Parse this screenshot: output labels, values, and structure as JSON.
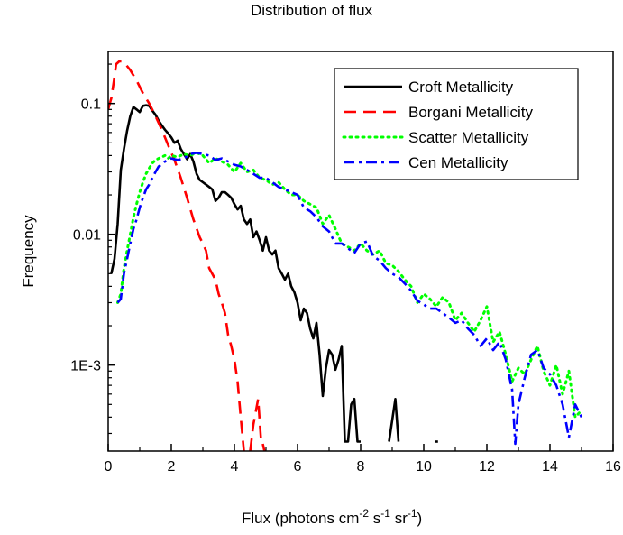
{
  "chart_data": {
    "type": "line",
    "title": "Distribution of flux",
    "xlabel": {
      "prefix": "Flux (photons cm",
      "exp1": "-2",
      "mid1": " s",
      "exp2": "-1",
      "mid2": " sr",
      "exp3": "-1",
      "suffix": ")"
    },
    "ylabel": "Frequency",
    "xlim": [
      0,
      16
    ],
    "ylim": [
      0.00022,
      0.25
    ],
    "yscale": "log",
    "x_ticks": [
      0,
      2,
      4,
      6,
      8,
      10,
      12,
      14,
      16
    ],
    "x_tick_labels": [
      "0",
      "2",
      "4",
      "6",
      "8",
      "10",
      "12",
      "14",
      "16"
    ],
    "y_ticks": [
      0.001,
      0.01,
      0.1
    ],
    "y_tick_labels": [
      "1E-3",
      "0.01",
      "0.1"
    ],
    "legend_position": "top-right",
    "series": [
      {
        "name": "Croft Metallicity",
        "color": "#000000",
        "style": "solid",
        "points": [
          [
            0.1,
            0.005
          ],
          [
            0.2,
            0.0065
          ],
          [
            0.3,
            0.012
          ],
          [
            0.4,
            0.031
          ],
          [
            0.5,
            0.045
          ],
          [
            0.6,
            0.062
          ],
          [
            0.7,
            0.08
          ],
          [
            0.8,
            0.094
          ],
          [
            0.9,
            0.09
          ],
          [
            1.0,
            0.086
          ],
          [
            1.1,
            0.096
          ],
          [
            1.2,
            0.097
          ],
          [
            1.3,
            0.096
          ],
          [
            1.4,
            0.088
          ],
          [
            1.5,
            0.082
          ],
          [
            1.6,
            0.074
          ],
          [
            1.7,
            0.068
          ],
          [
            1.8,
            0.063
          ],
          [
            1.9,
            0.059
          ],
          [
            2.0,
            0.055
          ],
          [
            2.1,
            0.05
          ],
          [
            2.2,
            0.052
          ],
          [
            2.3,
            0.045
          ],
          [
            2.4,
            0.041
          ],
          [
            2.5,
            0.0375
          ],
          [
            2.6,
            0.041
          ],
          [
            2.7,
            0.036
          ],
          [
            2.8,
            0.029
          ],
          [
            2.9,
            0.026
          ],
          [
            3.0,
            0.025
          ],
          [
            3.1,
            0.024
          ],
          [
            3.2,
            0.023
          ],
          [
            3.3,
            0.022
          ],
          [
            3.4,
            0.018
          ],
          [
            3.5,
            0.019
          ],
          [
            3.6,
            0.021
          ],
          [
            3.7,
            0.021
          ],
          [
            3.8,
            0.02
          ],
          [
            3.9,
            0.019
          ],
          [
            4.0,
            0.017
          ],
          [
            4.1,
            0.0155
          ],
          [
            4.2,
            0.0165
          ],
          [
            4.3,
            0.013
          ],
          [
            4.4,
            0.012
          ],
          [
            4.5,
            0.013
          ],
          [
            4.6,
            0.0095
          ],
          [
            4.7,
            0.0105
          ],
          [
            4.8,
            0.009
          ],
          [
            4.9,
            0.0075
          ],
          [
            5.0,
            0.0095
          ],
          [
            5.1,
            0.0075
          ],
          [
            5.2,
            0.007
          ],
          [
            5.3,
            0.0075
          ],
          [
            5.4,
            0.0055
          ],
          [
            5.5,
            0.005
          ],
          [
            5.6,
            0.0045
          ],
          [
            5.7,
            0.005
          ],
          [
            5.8,
            0.004
          ],
          [
            5.9,
            0.0036
          ],
          [
            6.0,
            0.003
          ],
          [
            6.1,
            0.0022
          ],
          [
            6.2,
            0.0027
          ],
          [
            6.3,
            0.0025
          ],
          [
            6.4,
            0.0019
          ],
          [
            6.5,
            0.0016
          ],
          [
            6.6,
            0.0021
          ],
          [
            6.7,
            0.0012
          ],
          [
            6.8,
            0.00058
          ],
          [
            6.9,
            0.00095
          ],
          [
            7.0,
            0.0013
          ],
          [
            7.1,
            0.0012
          ],
          [
            7.2,
            0.00092
          ],
          [
            7.3,
            0.0011
          ],
          [
            7.4,
            0.0014
          ],
          [
            7.5,
            0.00026
          ],
          [
            7.6,
            0.00026
          ],
          [
            7.7,
            0.0005
          ],
          [
            7.8,
            0.00055
          ],
          [
            7.9,
            0.00026
          ],
          [
            8.0,
            0.00026
          ]
        ],
        "extra_segments": [
          [
            [
              8.9,
              0.00026
            ],
            [
              9.1,
              0.00055
            ],
            [
              9.2,
              0.00026
            ]
          ],
          [
            [
              10.35,
              0.00026
            ],
            [
              10.45,
              0.00026
            ]
          ]
        ]
      },
      {
        "name": "Borgani Metallicity",
        "color": "#ff0000",
        "style": "dashed",
        "points": [
          [
            0.0,
            0.09
          ],
          [
            0.1,
            0.11
          ],
          [
            0.2,
            0.16
          ],
          [
            0.25,
            0.2
          ],
          [
            0.35,
            0.21
          ],
          [
            0.45,
            0.21
          ],
          [
            0.55,
            0.2
          ],
          [
            0.7,
            0.18
          ],
          [
            0.9,
            0.15
          ],
          [
            1.1,
            0.12
          ],
          [
            1.3,
            0.1
          ],
          [
            1.5,
            0.08
          ],
          [
            1.7,
            0.063
          ],
          [
            1.9,
            0.048
          ],
          [
            2.1,
            0.037
          ],
          [
            2.3,
            0.027
          ],
          [
            2.5,
            0.019
          ],
          [
            2.7,
            0.013
          ],
          [
            2.9,
            0.0095
          ],
          [
            3.0,
            0.0085
          ],
          [
            3.1,
            0.0075
          ],
          [
            3.2,
            0.0055
          ],
          [
            3.4,
            0.0045
          ],
          [
            3.5,
            0.0035
          ],
          [
            3.6,
            0.003
          ],
          [
            3.7,
            0.0025
          ],
          [
            3.8,
            0.0017
          ],
          [
            3.9,
            0.0014
          ],
          [
            4.0,
            0.0011
          ],
          [
            4.1,
            0.00075
          ],
          [
            4.2,
            0.0004
          ],
          [
            4.3,
            0.00022
          ]
        ],
        "extra_segments": [
          [
            [
              4.5,
              0.00022
            ],
            [
              4.6,
              0.00035
            ],
            [
              4.75,
              0.00055
            ],
            [
              4.85,
              0.00025
            ]
          ],
          [
            [
              4.9,
              0.00025
            ],
            [
              4.95,
              0.00022
            ]
          ]
        ]
      },
      {
        "name": "Scatter Metallicity",
        "color": "#00ff00",
        "style": "dotted",
        "points": [
          [
            0.3,
            0.003
          ],
          [
            0.4,
            0.0035
          ],
          [
            0.5,
            0.0055
          ],
          [
            0.6,
            0.0075
          ],
          [
            0.7,
            0.01
          ],
          [
            0.8,
            0.0135
          ],
          [
            0.9,
            0.017
          ],
          [
            1.0,
            0.021
          ],
          [
            1.1,
            0.025
          ],
          [
            1.2,
            0.029
          ],
          [
            1.3,
            0.032
          ],
          [
            1.4,
            0.035
          ],
          [
            1.5,
            0.037
          ],
          [
            1.6,
            0.038
          ],
          [
            1.7,
            0.039
          ],
          [
            1.8,
            0.04
          ],
          [
            1.9,
            0.038
          ],
          [
            2.0,
            0.04
          ],
          [
            2.2,
            0.039
          ],
          [
            2.4,
            0.041
          ],
          [
            2.6,
            0.04
          ],
          [
            2.8,
            0.042
          ],
          [
            3.0,
            0.04
          ],
          [
            3.2,
            0.035
          ],
          [
            3.4,
            0.038
          ],
          [
            3.6,
            0.036
          ],
          [
            3.8,
            0.034
          ],
          [
            4.0,
            0.03
          ],
          [
            4.2,
            0.035
          ],
          [
            4.4,
            0.03
          ],
          [
            4.6,
            0.031
          ],
          [
            4.8,
            0.027
          ],
          [
            5.0,
            0.026
          ],
          [
            5.2,
            0.024
          ],
          [
            5.4,
            0.025
          ],
          [
            5.6,
            0.022
          ],
          [
            5.8,
            0.02
          ],
          [
            6.0,
            0.02
          ],
          [
            6.2,
            0.018
          ],
          [
            6.4,
            0.017
          ],
          [
            6.6,
            0.016
          ],
          [
            6.8,
            0.012
          ],
          [
            7.0,
            0.014
          ],
          [
            7.2,
            0.011
          ],
          [
            7.4,
            0.0085
          ],
          [
            7.6,
            0.008
          ],
          [
            7.8,
            0.0075
          ],
          [
            8.0,
            0.0085
          ],
          [
            8.2,
            0.0075
          ],
          [
            8.4,
            0.007
          ],
          [
            8.6,
            0.0075
          ],
          [
            8.8,
            0.006
          ],
          [
            9.0,
            0.0058
          ],
          [
            9.2,
            0.0052
          ],
          [
            9.4,
            0.0045
          ],
          [
            9.6,
            0.004
          ],
          [
            9.8,
            0.003
          ],
          [
            10.0,
            0.0035
          ],
          [
            10.2,
            0.0032
          ],
          [
            10.4,
            0.0028
          ],
          [
            10.6,
            0.0033
          ],
          [
            10.8,
            0.003
          ],
          [
            11.0,
            0.0022
          ],
          [
            11.2,
            0.0025
          ],
          [
            11.4,
            0.0021
          ],
          [
            11.6,
            0.0018
          ],
          [
            11.8,
            0.0022
          ],
          [
            12.0,
            0.0028
          ],
          [
            12.2,
            0.0015
          ],
          [
            12.4,
            0.0018
          ],
          [
            12.6,
            0.0012
          ],
          [
            12.8,
            0.00075
          ],
          [
            13.0,
            0.00095
          ],
          [
            13.2,
            0.00085
          ],
          [
            13.4,
            0.0011
          ],
          [
            13.6,
            0.0014
          ],
          [
            13.8,
            0.0009
          ],
          [
            14.0,
            0.0007
          ],
          [
            14.2,
            0.001
          ],
          [
            14.4,
            0.0006
          ],
          [
            14.6,
            0.0009
          ],
          [
            14.8,
            0.0004
          ],
          [
            15.0,
            0.00045
          ]
        ]
      },
      {
        "name": "Cen Metallicity",
        "color": "#0000ff",
        "style": "dashdot",
        "points": [
          [
            0.3,
            0.003
          ],
          [
            0.4,
            0.0032
          ],
          [
            0.5,
            0.005
          ],
          [
            0.6,
            0.0065
          ],
          [
            0.7,
            0.0085
          ],
          [
            0.8,
            0.011
          ],
          [
            0.9,
            0.013
          ],
          [
            1.0,
            0.016
          ],
          [
            1.1,
            0.019
          ],
          [
            1.2,
            0.022
          ],
          [
            1.3,
            0.024
          ],
          [
            1.4,
            0.027
          ],
          [
            1.5,
            0.03
          ],
          [
            1.6,
            0.033
          ],
          [
            1.7,
            0.034
          ],
          [
            1.8,
            0.036
          ],
          [
            1.9,
            0.037
          ],
          [
            2.0,
            0.038
          ],
          [
            2.2,
            0.037
          ],
          [
            2.4,
            0.038
          ],
          [
            2.6,
            0.041
          ],
          [
            2.8,
            0.042
          ],
          [
            3.0,
            0.041
          ],
          [
            3.2,
            0.04
          ],
          [
            3.4,
            0.037
          ],
          [
            3.6,
            0.038
          ],
          [
            3.8,
            0.036
          ],
          [
            4.0,
            0.034
          ],
          [
            4.2,
            0.033
          ],
          [
            4.4,
            0.031
          ],
          [
            4.6,
            0.029
          ],
          [
            4.8,
            0.027
          ],
          [
            5.0,
            0.027
          ],
          [
            5.2,
            0.025
          ],
          [
            5.4,
            0.023
          ],
          [
            5.6,
            0.022
          ],
          [
            5.8,
            0.021
          ],
          [
            6.0,
            0.02
          ],
          [
            6.2,
            0.016
          ],
          [
            6.4,
            0.015
          ],
          [
            6.6,
            0.0135
          ],
          [
            6.8,
            0.0115
          ],
          [
            7.0,
            0.0105
          ],
          [
            7.2,
            0.0085
          ],
          [
            7.4,
            0.0085
          ],
          [
            7.6,
            0.0078
          ],
          [
            7.8,
            0.0072
          ],
          [
            8.0,
            0.0085
          ],
          [
            8.2,
            0.0088
          ],
          [
            8.4,
            0.0068
          ],
          [
            8.6,
            0.0063
          ],
          [
            8.8,
            0.0055
          ],
          [
            9.0,
            0.005
          ],
          [
            9.2,
            0.0047
          ],
          [
            9.4,
            0.0042
          ],
          [
            9.6,
            0.0037
          ],
          [
            9.8,
            0.0031
          ],
          [
            10.0,
            0.0029
          ],
          [
            10.2,
            0.0027
          ],
          [
            10.4,
            0.0027
          ],
          [
            10.6,
            0.0025
          ],
          [
            10.8,
            0.0023
          ],
          [
            11.0,
            0.0021
          ],
          [
            11.2,
            0.0022
          ],
          [
            11.4,
            0.0019
          ],
          [
            11.6,
            0.0017
          ],
          [
            11.8,
            0.0014
          ],
          [
            12.0,
            0.0016
          ],
          [
            12.2,
            0.0013
          ],
          [
            12.4,
            0.0015
          ],
          [
            12.6,
            0.0011
          ],
          [
            12.8,
            0.00065
          ],
          [
            12.9,
            0.00025
          ],
          [
            13.0,
            0.0005
          ],
          [
            13.2,
            0.0008
          ],
          [
            13.4,
            0.0012
          ],
          [
            13.6,
            0.0013
          ],
          [
            13.8,
            0.00095
          ],
          [
            14.0,
            0.00085
          ],
          [
            14.2,
            0.0007
          ],
          [
            14.4,
            0.0005
          ],
          [
            14.6,
            0.00028
          ],
          [
            14.8,
            0.0005
          ],
          [
            15.0,
            0.0004
          ]
        ]
      }
    ]
  }
}
